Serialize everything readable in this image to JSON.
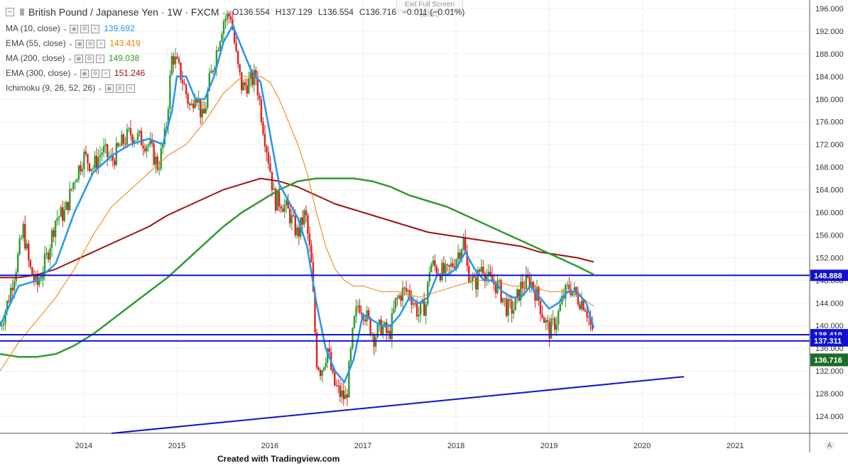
{
  "header": {
    "symbol_title": "British Pound / Japanese Yen",
    "interval": "1W",
    "source": "FXCM",
    "open": "O136.554",
    "high": "H137.129",
    "low": "L136.554",
    "close": "C136.716",
    "change": "−0.011 (−0.01%)"
  },
  "exit_fullscreen": "Exit Full Screen (ESC)",
  "indicators": [
    {
      "label": "MA (10, close)",
      "value": "139.692",
      "color": "#2196f3"
    },
    {
      "label": "EMA (55, close)",
      "value": "143.419",
      "color": "#f57c00"
    },
    {
      "label": "MA (200, close)",
      "value": "149.038",
      "color": "#2e9b2e"
    },
    {
      "label": "EMA (300, close)",
      "value": "151.246",
      "color": "#a01010"
    },
    {
      "label": "Ichimoku (9, 26, 52, 26)",
      "value": "",
      "color": "#555555"
    }
  ],
  "footer": "Created with Tradingview.com",
  "auto_label": "A",
  "chart_data": {
    "type": "candlestick",
    "y_axis_side": "right",
    "ylim": [
      121,
      197.5
    ],
    "y_ticks": [
      "196.000",
      "192.000",
      "188.000",
      "184.000",
      "180.000",
      "176.000",
      "172.000",
      "168.000",
      "164.000",
      "160.000",
      "156.000",
      "152.000",
      "148.000",
      "144.000",
      "140.000",
      "136.000",
      "132.000",
      "128.000",
      "124.000"
    ],
    "x_ticks": [
      "2014",
      "2015",
      "2016",
      "2017",
      "2018",
      "2019",
      "2020",
      "2021"
    ],
    "xlim": [
      2013.1,
      2021.8
    ],
    "up_color": "#2e9b2e",
    "down_color": "#e02020",
    "horizontal_lines": [
      {
        "value": 148.888,
        "label": "148.888",
        "color": "#1010d0"
      },
      {
        "value": 138.41,
        "label": "138.410",
        "color": "#1010d0"
      },
      {
        "value": 137.311,
        "label": "137.311",
        "color": "#1010d0"
      }
    ],
    "last_price": {
      "value": 136.716,
      "label": "136.716",
      "color": "#1e6b28"
    },
    "trendline": {
      "x": [
        2014.3,
        2020.45
      ],
      "y": [
        121.0,
        131.0
      ],
      "color": "#1010d0"
    },
    "price_path": [
      [
        2013.1,
        140
      ],
      [
        2013.18,
        144
      ],
      [
        2013.28,
        151
      ],
      [
        2013.35,
        157
      ],
      [
        2013.42,
        150
      ],
      [
        2013.5,
        147
      ],
      [
        2013.6,
        152
      ],
      [
        2013.7,
        159
      ],
      [
        2013.8,
        160
      ],
      [
        2013.9,
        166
      ],
      [
        2014.0,
        170
      ],
      [
        2014.1,
        168
      ],
      [
        2014.2,
        171
      ],
      [
        2014.3,
        169
      ],
      [
        2014.4,
        172
      ],
      [
        2014.5,
        174
      ],
      [
        2014.6,
        173
      ],
      [
        2014.7,
        172
      ],
      [
        2014.8,
        168
      ],
      [
        2014.88,
        174
      ],
      [
        2014.95,
        188
      ],
      [
        2015.05,
        184
      ],
      [
        2015.15,
        178
      ],
      [
        2015.2,
        182
      ],
      [
        2015.28,
        176
      ],
      [
        2015.35,
        183
      ],
      [
        2015.42,
        188
      ],
      [
        2015.5,
        194
      ],
      [
        2015.58,
        195
      ],
      [
        2015.65,
        186
      ],
      [
        2015.7,
        182
      ],
      [
        2015.78,
        183
      ],
      [
        2015.85,
        184
      ],
      [
        2015.92,
        176
      ],
      [
        2016.0,
        168
      ],
      [
        2016.05,
        162
      ],
      [
        2016.12,
        162
      ],
      [
        2016.2,
        160
      ],
      [
        2016.3,
        156
      ],
      [
        2016.38,
        160
      ],
      [
        2016.45,
        150
      ],
      [
        2016.5,
        134
      ],
      [
        2016.55,
        132
      ],
      [
        2016.62,
        136
      ],
      [
        2016.68,
        130
      ],
      [
        2016.75,
        128
      ],
      [
        2016.82,
        127
      ],
      [
        2016.9,
        140
      ],
      [
        2016.95,
        144
      ],
      [
        2017.0,
        143
      ],
      [
        2017.05,
        141
      ],
      [
        2017.12,
        138
      ],
      [
        2017.2,
        140
      ],
      [
        2017.28,
        138
      ],
      [
        2017.35,
        144
      ],
      [
        2017.42,
        146
      ],
      [
        2017.5,
        146
      ],
      [
        2017.6,
        142
      ],
      [
        2017.68,
        144
      ],
      [
        2017.72,
        151
      ],
      [
        2017.8,
        150
      ],
      [
        2017.9,
        149
      ],
      [
        2018.0,
        152
      ],
      [
        2018.08,
        155
      ],
      [
        2018.12,
        150
      ],
      [
        2018.2,
        147
      ],
      [
        2018.28,
        151
      ],
      [
        2018.35,
        148
      ],
      [
        2018.45,
        147
      ],
      [
        2018.55,
        143
      ],
      [
        2018.62,
        143
      ],
      [
        2018.7,
        147
      ],
      [
        2018.8,
        148
      ],
      [
        2018.88,
        145
      ],
      [
        2018.95,
        141
      ],
      [
        2019.0,
        139
      ],
      [
        2019.08,
        141
      ],
      [
        2019.15,
        145
      ],
      [
        2019.22,
        147
      ],
      [
        2019.3,
        145
      ],
      [
        2019.38,
        144
      ],
      [
        2019.42,
        142
      ],
      [
        2019.48,
        137
      ],
      [
        2019.45,
        136.7
      ]
    ],
    "ma10": [
      [
        2013.1,
        140
      ],
      [
        2013.3,
        147
      ],
      [
        2013.5,
        148
      ],
      [
        2013.7,
        151
      ],
      [
        2013.9,
        160
      ],
      [
        2014.1,
        167
      ],
      [
        2014.3,
        170
      ],
      [
        2014.5,
        172
      ],
      [
        2014.7,
        173
      ],
      [
        2014.85,
        172
      ],
      [
        2014.95,
        178
      ],
      [
        2015.0,
        184
      ],
      [
        2015.1,
        184
      ],
      [
        2015.2,
        180
      ],
      [
        2015.3,
        180
      ],
      [
        2015.4,
        184
      ],
      [
        2015.5,
        190
      ],
      [
        2015.6,
        193
      ],
      [
        2015.7,
        189
      ],
      [
        2015.8,
        185
      ],
      [
        2015.9,
        183
      ],
      [
        2016.0,
        174
      ],
      [
        2016.1,
        165
      ],
      [
        2016.2,
        162
      ],
      [
        2016.3,
        159
      ],
      [
        2016.4,
        154
      ],
      [
        2016.5,
        144
      ],
      [
        2016.6,
        136
      ],
      [
        2016.7,
        132
      ],
      [
        2016.8,
        130
      ],
      [
        2016.9,
        134
      ],
      [
        2017.0,
        142
      ],
      [
        2017.1,
        141
      ],
      [
        2017.2,
        140
      ],
      [
        2017.3,
        140
      ],
      [
        2017.4,
        142
      ],
      [
        2017.5,
        145
      ],
      [
        2017.6,
        144
      ],
      [
        2017.7,
        145
      ],
      [
        2017.8,
        149
      ],
      [
        2017.9,
        149
      ],
      [
        2018.0,
        150
      ],
      [
        2018.1,
        153
      ],
      [
        2018.2,
        150
      ],
      [
        2018.3,
        148
      ],
      [
        2018.4,
        148
      ],
      [
        2018.5,
        146
      ],
      [
        2018.6,
        145
      ],
      [
        2018.7,
        145
      ],
      [
        2018.8,
        147
      ],
      [
        2018.9,
        145
      ],
      [
        2019.0,
        143
      ],
      [
        2019.1,
        144
      ],
      [
        2019.2,
        146
      ],
      [
        2019.3,
        146
      ],
      [
        2019.4,
        144
      ],
      [
        2019.48,
        139.692
      ]
    ],
    "ema55": [
      [
        2013.1,
        132
      ],
      [
        2013.3,
        137
      ],
      [
        2013.5,
        141
      ],
      [
        2013.7,
        145
      ],
      [
        2013.9,
        150
      ],
      [
        2014.1,
        156
      ],
      [
        2014.3,
        161
      ],
      [
        2014.5,
        164
      ],
      [
        2014.7,
        167
      ],
      [
        2014.9,
        170
      ],
      [
        2015.1,
        172
      ],
      [
        2015.3,
        176
      ],
      [
        2015.5,
        181
      ],
      [
        2015.7,
        184
      ],
      [
        2015.9,
        184
      ],
      [
        2016.0,
        183
      ],
      [
        2016.1,
        180
      ],
      [
        2016.2,
        176
      ],
      [
        2016.3,
        172
      ],
      [
        2016.4,
        167
      ],
      [
        2016.5,
        160
      ],
      [
        2016.6,
        154
      ],
      [
        2016.7,
        150
      ],
      [
        2016.8,
        148
      ],
      [
        2016.9,
        147
      ],
      [
        2017.0,
        147
      ],
      [
        2017.2,
        146
      ],
      [
        2017.4,
        146
      ],
      [
        2017.6,
        145
      ],
      [
        2017.8,
        146
      ],
      [
        2018.0,
        147
      ],
      [
        2018.2,
        148
      ],
      [
        2018.4,
        148
      ],
      [
        2018.6,
        147
      ],
      [
        2018.8,
        147
      ],
      [
        2019.0,
        146
      ],
      [
        2019.2,
        146
      ],
      [
        2019.35,
        145
      ],
      [
        2019.48,
        143.419
      ]
    ],
    "ma200": [
      [
        2013.1,
        135
      ],
      [
        2013.3,
        134.5
      ],
      [
        2013.5,
        134.5
      ],
      [
        2013.7,
        135
      ],
      [
        2013.9,
        136.5
      ],
      [
        2014.1,
        138.5
      ],
      [
        2014.3,
        141
      ],
      [
        2014.5,
        143.5
      ],
      [
        2014.7,
        146
      ],
      [
        2014.9,
        148.5
      ],
      [
        2015.1,
        151.5
      ],
      [
        2015.3,
        154.5
      ],
      [
        2015.5,
        157.5
      ],
      [
        2015.7,
        160
      ],
      [
        2015.9,
        162
      ],
      [
        2016.1,
        164
      ],
      [
        2016.3,
        165.5
      ],
      [
        2016.5,
        166
      ],
      [
        2016.7,
        166
      ],
      [
        2016.9,
        166
      ],
      [
        2017.1,
        165.5
      ],
      [
        2017.3,
        164.5
      ],
      [
        2017.5,
        163
      ],
      [
        2017.7,
        162
      ],
      [
        2017.9,
        161
      ],
      [
        2018.1,
        159.5
      ],
      [
        2018.3,
        158
      ],
      [
        2018.5,
        156.5
      ],
      [
        2018.7,
        155
      ],
      [
        2018.9,
        153.5
      ],
      [
        2019.1,
        152
      ],
      [
        2019.3,
        150.5
      ],
      [
        2019.48,
        149.038
      ]
    ],
    "ema300": [
      [
        2013.1,
        148.5
      ],
      [
        2013.3,
        148.5
      ],
      [
        2013.5,
        149
      ],
      [
        2013.7,
        150
      ],
      [
        2013.9,
        151.5
      ],
      [
        2014.1,
        153
      ],
      [
        2014.3,
        154.5
      ],
      [
        2014.5,
        156
      ],
      [
        2014.7,
        157.5
      ],
      [
        2014.9,
        159.5
      ],
      [
        2015.1,
        161
      ],
      [
        2015.3,
        162.5
      ],
      [
        2015.5,
        164
      ],
      [
        2015.7,
        165
      ],
      [
        2015.9,
        166
      ],
      [
        2016.1,
        165.5
      ],
      [
        2016.3,
        164.5
      ],
      [
        2016.5,
        163
      ],
      [
        2016.7,
        161.5
      ],
      [
        2016.9,
        160.5
      ],
      [
        2017.1,
        159.5
      ],
      [
        2017.3,
        158.5
      ],
      [
        2017.5,
        157.5
      ],
      [
        2017.7,
        156.5
      ],
      [
        2017.9,
        156
      ],
      [
        2018.1,
        155.5
      ],
      [
        2018.3,
        155
      ],
      [
        2018.5,
        154.5
      ],
      [
        2018.7,
        154
      ],
      [
        2018.9,
        153
      ],
      [
        2019.1,
        152.5
      ],
      [
        2019.3,
        152
      ],
      [
        2019.48,
        151.246
      ]
    ]
  }
}
